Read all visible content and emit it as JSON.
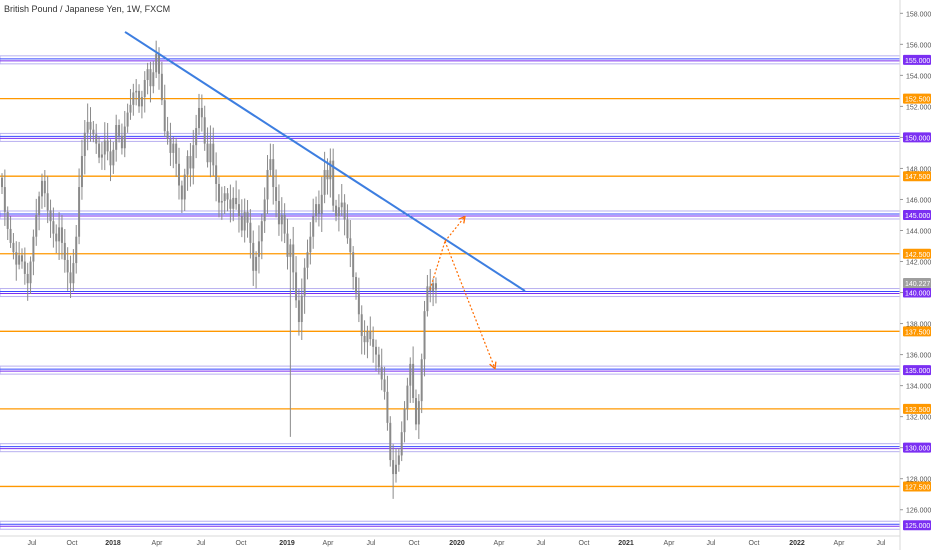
{
  "chart_data": {
    "type": "candlestick",
    "title": "British Pound / Japanese Yen, 1W, FXCM",
    "xlabel": "",
    "ylabel": "",
    "ylim": [
      124.5,
      158.6
    ],
    "x_ticks": [
      "Jul",
      "Oct",
      "2018",
      "Apr",
      "Jul",
      "Oct",
      "2019",
      "Apr",
      "Jul",
      "Oct",
      "2020",
      "Apr",
      "Jul",
      "Oct",
      "2021",
      "Apr",
      "Jul",
      "Oct",
      "2022",
      "Apr",
      "Jul"
    ],
    "y_ticks": [
      "158.000",
      "156.000",
      "154.000",
      "152.000",
      "150.000",
      "148.000",
      "146.000",
      "144.000",
      "142.000",
      "140.000",
      "138.000",
      "136.000",
      "134.000",
      "132.000",
      "130.000",
      "128.000",
      "126.000"
    ],
    "y_tick_values": [
      158,
      156,
      154,
      152,
      150,
      148,
      146,
      144,
      142,
      140,
      138,
      136,
      134,
      132,
      130,
      128,
      126
    ],
    "current_price": {
      "label": "140.227",
      "value": 140.227
    },
    "horizontal_levels": [
      {
        "label": "155.000",
        "value": 155.0,
        "kind": "major",
        "color": "#7b2ff2"
      },
      {
        "label": "152.500",
        "value": 152.5,
        "kind": "minor",
        "color": "#ff9800"
      },
      {
        "label": "150.000",
        "value": 150.0,
        "kind": "major",
        "color": "#7b2ff2"
      },
      {
        "label": "147.500",
        "value": 147.5,
        "kind": "minor",
        "color": "#ff9800"
      },
      {
        "label": "145.000",
        "value": 145.0,
        "kind": "major",
        "color": "#7b2ff2"
      },
      {
        "label": "142.500",
        "value": 142.5,
        "kind": "minor",
        "color": "#ff9800"
      },
      {
        "label": "140.000",
        "value": 140.0,
        "kind": "major",
        "color": "#7b2ff2"
      },
      {
        "label": "137.500",
        "value": 137.5,
        "kind": "minor",
        "color": "#ff9800"
      },
      {
        "label": "135.000",
        "value": 135.0,
        "kind": "major",
        "color": "#7b2ff2"
      },
      {
        "label": "132.500",
        "value": 132.5,
        "kind": "minor",
        "color": "#ff9800"
      },
      {
        "label": "130.000",
        "value": 130.0,
        "kind": "major",
        "color": "#7b2ff2"
      },
      {
        "label": "127.500",
        "value": 127.5,
        "kind": "minor",
        "color": "#ff9800"
      },
      {
        "label": "125.000",
        "value": 125.0,
        "kind": "major",
        "color": "#7b2ff2"
      }
    ],
    "trendline": {
      "color": "#3d7ee0",
      "from_price": 156.8,
      "to_price": 140.1
    },
    "projection_arrows": {
      "color": "#ff6d00",
      "prices": [
        140.2,
        143.3,
        144.9,
        135.1
      ]
    },
    "candles_close": [
      146.8,
      145.2,
      144.1,
      143.2,
      142.6,
      141.8,
      142.4,
      142.0,
      141.2,
      140.6,
      142.0,
      143.6,
      145.0,
      146.2,
      147.2,
      146.4,
      145.3,
      144.6,
      143.8,
      143.3,
      144.2,
      143.2,
      142.1,
      141.3,
      140.6,
      141.9,
      143.6,
      146.8,
      148.8,
      150.3,
      151.0,
      150.5,
      150.2,
      149.6,
      148.7,
      148.9,
      149.8,
      149.1,
      148.2,
      149.2,
      150.8,
      150.1,
      149.3,
      150.7,
      151.6,
      152.1,
      152.9,
      153.0,
      152.0,
      152.6,
      153.7,
      154.4,
      153.3,
      154.2,
      155.4,
      154.1,
      152.4,
      150.4,
      149.9,
      149.0,
      149.6,
      148.3,
      146.9,
      146.0,
      147.6,
      148.8,
      148.0,
      149.5,
      150.6,
      151.9,
      151.3,
      149.6,
      148.4,
      149.6,
      148.2,
      147.0,
      145.8,
      145.9,
      146.4,
      146.0,
      145.4,
      146.1,
      145.7,
      144.9,
      144.0,
      145.2,
      144.5,
      143.2,
      141.4,
      142.3,
      143.3,
      144.6,
      146.0,
      147.9,
      148.6,
      146.8,
      145.9,
      144.4,
      145.0,
      143.8,
      142.3,
      143.1,
      141.3,
      139.5,
      138.1,
      139.8,
      141.6,
      142.6,
      143.6,
      144.9,
      145.7,
      145.1,
      146.3,
      147.9,
      147.3,
      148.5,
      145.6,
      144.9,
      145.5,
      145.8,
      144.7,
      143.5,
      142.6,
      141.0,
      140.0,
      138.6,
      137.2,
      136.8,
      137.5,
      137.0,
      136.5,
      136.0,
      135.2,
      134.4,
      133.6,
      131.6,
      129.2,
      128.3,
      128.9,
      129.5,
      131.0,
      132.5,
      134.0,
      135.4,
      133.2,
      131.5,
      133.0,
      135.7,
      138.8,
      140.4,
      140.1,
      140.6,
      140.2
    ]
  }
}
